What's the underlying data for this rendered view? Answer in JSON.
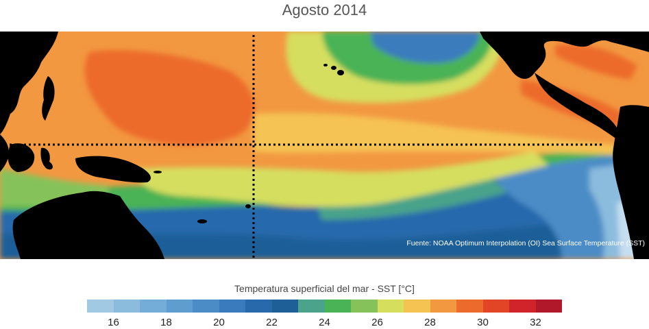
{
  "title": "Agosto 2014",
  "source_note": "Fuente: NOAA Optimum Interpolation (OI) Sea Surface Temperature (SST)",
  "colorbar": {
    "label": "Temperatura superficial del mar - SST  [°C]",
    "min": 15,
    "max": 33,
    "bin_width": 1,
    "tick_labels": [
      "16",
      "18",
      "20",
      "22",
      "24",
      "26",
      "28",
      "30",
      "32"
    ],
    "colors": [
      "#a2c9e3",
      "#8bbcde",
      "#74add7",
      "#5f9dcf",
      "#4c8cc6",
      "#3a7bbd",
      "#2869ac",
      "#1f5f98",
      "#4aa38a",
      "#4ab355",
      "#86c25a",
      "#d6de5e",
      "#f5c352",
      "#f29841",
      "#ec6b2c",
      "#e14525",
      "#d0232a",
      "#b1192a"
    ]
  },
  "map": {
    "land_color": "#000000",
    "equator_color": "#000000",
    "dateline_color": "#000000"
  }
}
